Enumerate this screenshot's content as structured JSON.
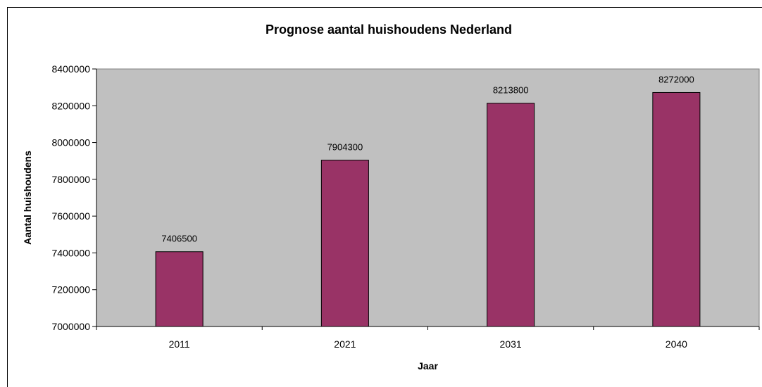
{
  "chart_data": {
    "type": "bar",
    "title": "Prognose aantal huishoudens Nederland",
    "xlabel": "Jaar",
    "ylabel": "Aantal huishoudens",
    "categories": [
      "2011",
      "2021",
      "2031",
      "2040"
    ],
    "values": [
      7406500,
      7904300,
      8213800,
      8272000
    ],
    "data_labels": [
      "7406500",
      "7904300",
      "8213800",
      "8272000"
    ],
    "ylim": [
      7000000,
      8400000
    ],
    "yticks": [
      7000000,
      7200000,
      7400000,
      7600000,
      7800000,
      8000000,
      8200000,
      8400000
    ],
    "ytick_labels": [
      "7000000",
      "7200000",
      "7400000",
      "7600000",
      "7800000",
      "8000000",
      "8200000",
      "8400000"
    ],
    "grid": false,
    "legend": "none",
    "colors": {
      "bar": "#993366",
      "plot_background": "#c0c0c0",
      "bar_outline": "#000000"
    }
  }
}
